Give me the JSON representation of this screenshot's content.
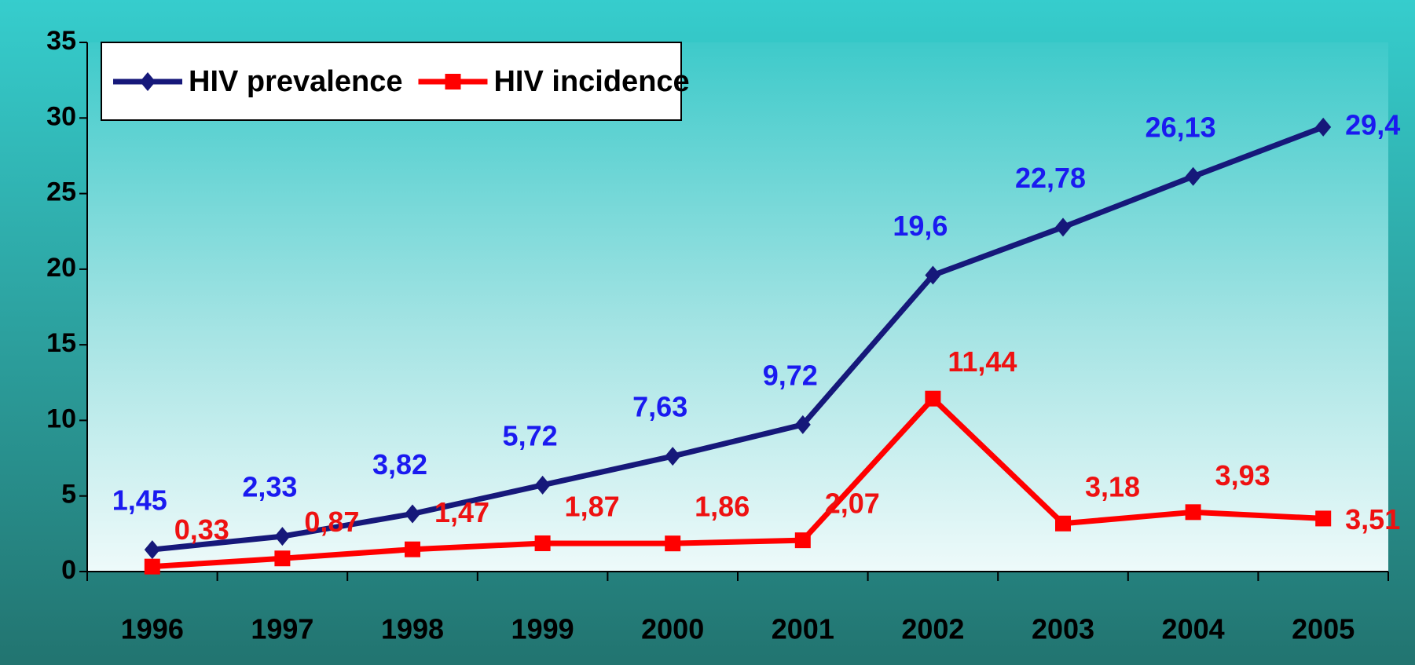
{
  "chart_data": {
    "type": "line",
    "categories": [
      "1996",
      "1997",
      "1998",
      "1999",
      "2000",
      "2001",
      "2002",
      "2003",
      "2004",
      "2005"
    ],
    "series": [
      {
        "name": "HIV prevalence",
        "color": "#16187a",
        "label_color": "#1a1af0",
        "marker": "diamond",
        "values": [
          1.45,
          2.33,
          3.82,
          5.72,
          7.63,
          9.72,
          19.6,
          22.78,
          26.13,
          29.4
        ],
        "value_labels": [
          "1,45",
          "2,33",
          "3,82",
          "5,72",
          "7,63",
          "9,72",
          "19,6",
          "22,78",
          "26,13",
          "29,4"
        ]
      },
      {
        "name": "HIV incidence",
        "color": "#ff0000",
        "label_color": "#ee1111",
        "marker": "square",
        "values": [
          0.33,
          0.87,
          1.47,
          1.87,
          1.86,
          2.07,
          11.44,
          3.18,
          3.93,
          3.51
        ],
        "value_labels": [
          "0,33",
          "0,87",
          "1,47",
          "1,87",
          "1,86",
          "2,07",
          "11,44",
          "3,18",
          "3,93",
          "3,51"
        ]
      }
    ],
    "ylim": [
      0,
      35
    ],
    "yticks": [
      0,
      5,
      10,
      15,
      20,
      25,
      30,
      35
    ],
    "grid": false,
    "legend": "top-left"
  }
}
